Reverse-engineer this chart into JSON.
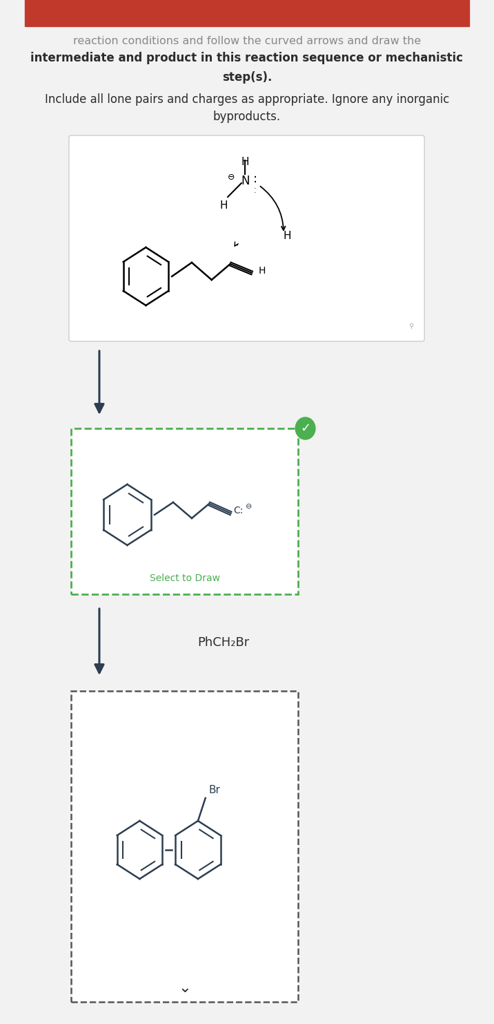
{
  "bg_color": "#f2f2f2",
  "white": "#ffffff",
  "header_color": "#c0392b",
  "title_line1": "reaction conditions and follow the curved arrows and draw the",
  "title_line2": "intermediate and product in this reaction sequence or mechanistic",
  "title_line3": "step(s).",
  "subtitle1": "Include all lone pairs and charges as appropriate. Ignore any inorganic",
  "subtitle2": "byproducts.",
  "text_color": "#2c2c2c",
  "gray_text": "#888888",
  "arrow_color": "#2c3e50",
  "green_color": "#4caf50",
  "dashed_black": "#555555",
  "select_text": "Select to Draw",
  "phch2br_text": "PhCH₂Br",
  "br_text": "Br",
  "mol_color": "#2c3e50"
}
